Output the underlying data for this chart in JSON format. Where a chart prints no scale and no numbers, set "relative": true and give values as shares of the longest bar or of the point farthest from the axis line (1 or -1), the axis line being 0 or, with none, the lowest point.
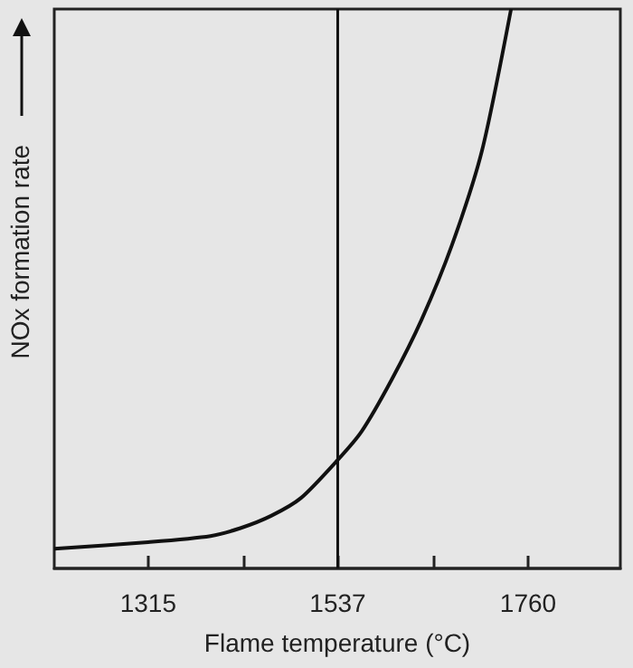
{
  "chart_data": {
    "type": "line",
    "xlabel": "Flame temperature (°C)",
    "ylabel": "NOx formation rate",
    "relative": true,
    "xlim": [
      1205,
      1868
    ],
    "xticks": [
      1315,
      {
        "value": 1426,
        "label": null
      },
      1537,
      {
        "value": 1649,
        "label": null
      },
      1760
    ],
    "series": [
      {
        "color": "#111111",
        "x": [
          1205,
          1315,
          1388,
          1423,
          1459,
          1494,
          1537,
          1565,
          1600,
          1635,
          1671,
          1706,
          1740
        ],
        "values": [
          0.035,
          0.047,
          0.058,
          0.072,
          0.094,
          0.126,
          0.194,
          0.245,
          0.337,
          0.444,
          0.579,
          0.747,
          1.0
        ]
      }
    ],
    "ref_lines": [
      {
        "axis": "x",
        "value": 1537,
        "color": "#111111"
      }
    ],
    "grid": false,
    "marker": "none",
    "line_style": "solid"
  }
}
